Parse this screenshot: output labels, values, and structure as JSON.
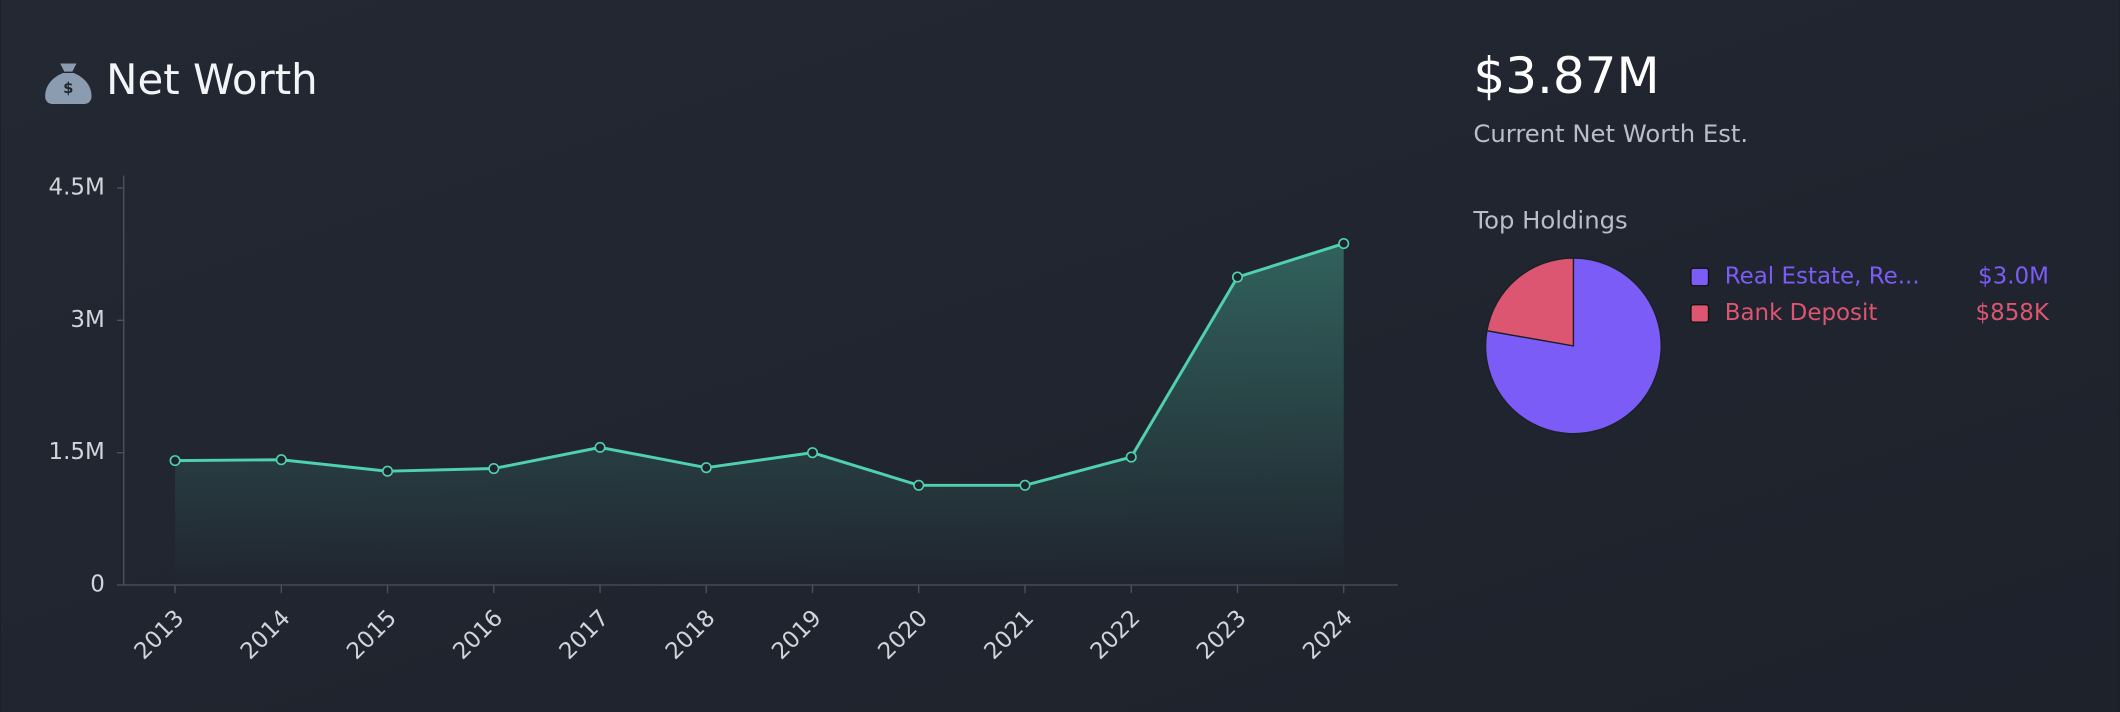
{
  "header": {
    "title": "Net Worth"
  },
  "summary": {
    "value": "$3.87M",
    "label": "Current Net Worth Est."
  },
  "chart_data": [
    {
      "type": "line",
      "categories": [
        "2013",
        "2014",
        "2015",
        "2016",
        "2017",
        "2018",
        "2019",
        "2020",
        "2021",
        "2022",
        "2023",
        "2024"
      ],
      "values": [
        1410000,
        1420000,
        1290000,
        1320000,
        1560000,
        1330000,
        1500000,
        1130000,
        1130000,
        1450000,
        3490000,
        3870000
      ],
      "color": "#4fd1b0",
      "ylim": [
        0,
        4640000
      ],
      "yticks": [
        {
          "value": 0,
          "label": "0"
        },
        {
          "value": 1500000,
          "label": "1.5M"
        },
        {
          "value": 3000000,
          "label": "3M"
        },
        {
          "value": 4500000,
          "label": "4.5M"
        }
      ]
    },
    {
      "type": "pie",
      "title": "Top Holdings",
      "categories": [
        "Real Estate, Re...",
        "Bank Deposit"
      ],
      "values": [
        3000000,
        858000
      ],
      "value_labels": [
        "$3.0M",
        "$858K"
      ],
      "colors": [
        "#7c5cf6",
        "#dc5671"
      ]
    }
  ]
}
